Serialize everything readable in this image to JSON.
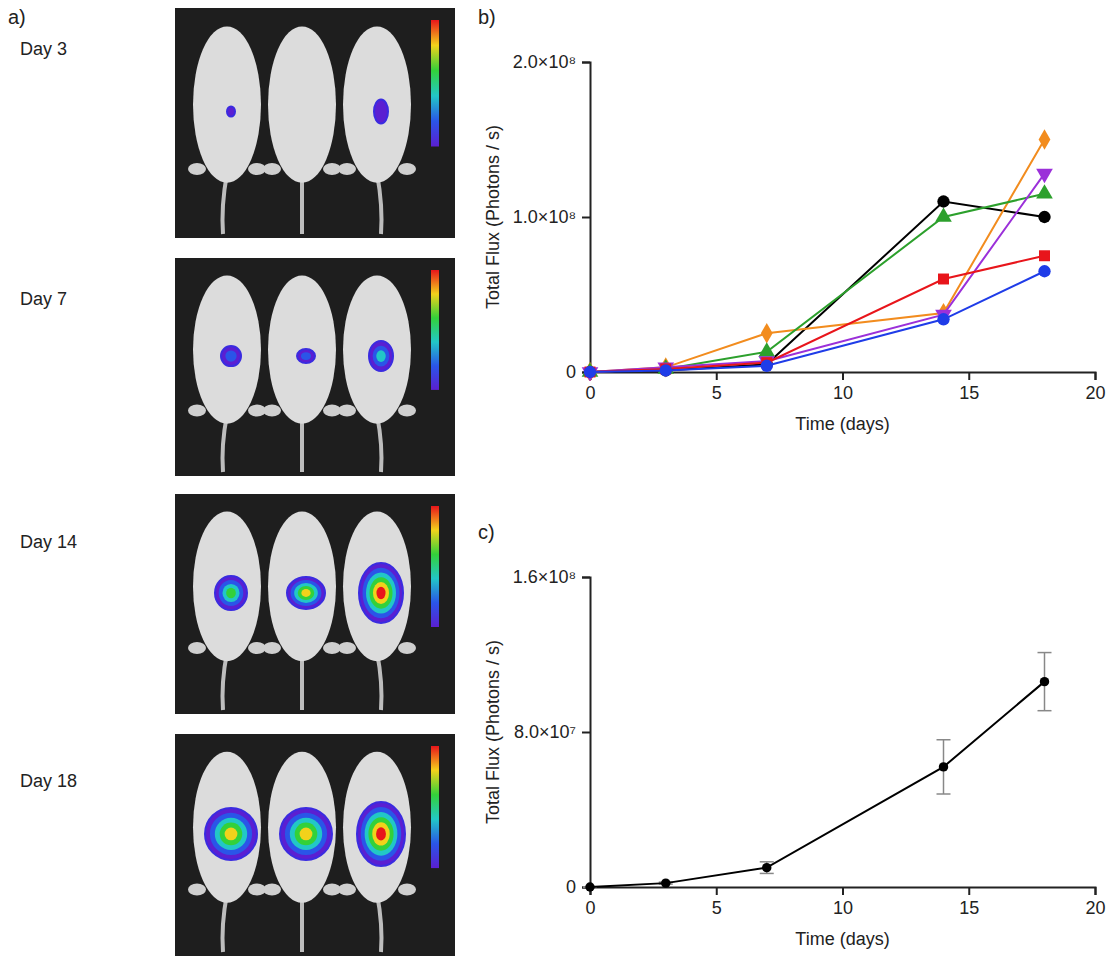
{
  "figure": {
    "panel": "a)",
    "days": [
      "Day 3",
      "Day 7",
      "Day 14",
      "Day 18"
    ]
  },
  "chart_data": [
    {
      "type": "line",
      "panel": "b)",
      "x_label": "Time (days)",
      "y_label": "Total Flux (Photons / s)",
      "x": [
        0,
        3,
        7,
        14,
        18
      ],
      "xlim": [
        0,
        20
      ],
      "xticks": [
        0,
        5,
        10,
        15,
        20
      ],
      "ylim": [
        0,
        200000000
      ],
      "yticks": [
        0,
        {
          "value": 100000000,
          "label": "1.0×10⁸"
        },
        {
          "value": 200000000,
          "label": "2.0×10⁸"
        }
      ],
      "grid": false,
      "series": [
        {
          "color": "#000000",
          "marker": "circle",
          "values": [
            0,
            1000000,
            5000000,
            110000000,
            100000000
          ]
        },
        {
          "color": "#f28c1e",
          "marker": "diamond",
          "values": [
            0,
            3000000,
            25000000,
            38000000,
            150000000
          ]
        },
        {
          "color": "#2ca02c",
          "marker": "triangle",
          "values": [
            0,
            2000000,
            13000000,
            100000000,
            115000000
          ]
        },
        {
          "color": "#9b30d9",
          "marker": "triangle-down",
          "values": [
            0,
            3000000,
            7000000,
            37000000,
            128000000
          ]
        },
        {
          "color": "#e8151b",
          "marker": "square",
          "values": [
            0,
            2000000,
            6000000,
            60000000,
            75000000
          ]
        },
        {
          "color": "#1f3ce8",
          "marker": "circle",
          "values": [
            0,
            1000000,
            4000000,
            34000000,
            65000000
          ]
        }
      ]
    },
    {
      "type": "line",
      "panel": "c)",
      "x_label": "Time (days)",
      "y_label": "Total Flux (Photons / s)",
      "x": [
        0,
        3,
        7,
        14,
        18
      ],
      "xlim": [
        0,
        20
      ],
      "xticks": [
        0,
        5,
        10,
        15,
        20
      ],
      "ylim": [
        0,
        160000000
      ],
      "yticks": [
        0,
        {
          "value": 80000000,
          "label": "8.0×10⁷"
        },
        {
          "value": 160000000,
          "label": "1.6×10⁸"
        }
      ],
      "grid": false,
      "series": [
        {
          "color": "#000000",
          "marker": "circle",
          "values": [
            0,
            2000000,
            10000000,
            62000000,
            106000000
          ],
          "errors": [
            0,
            500000,
            3000000,
            14000000,
            15000000
          ]
        }
      ]
    }
  ]
}
